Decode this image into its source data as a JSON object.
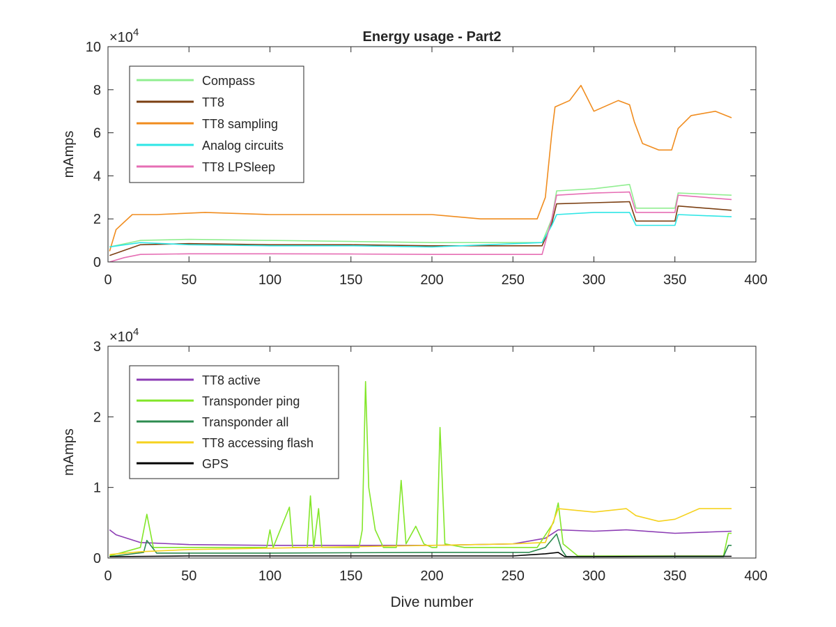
{
  "chart_data": [
    {
      "type": "line",
      "title": "Energy usage - Part2",
      "xlabel": "",
      "ylabel": "mAmps",
      "exponent_label": "×10",
      "exponent_power": "4",
      "xlim": [
        0,
        400
      ],
      "ylim": [
        0,
        100000
      ],
      "xticks": [
        0,
        50,
        100,
        150,
        200,
        250,
        300,
        350,
        400
      ],
      "yticks": [
        0,
        20000,
        40000,
        60000,
        80000,
        100000
      ],
      "ytick_labels": [
        "0",
        "2",
        "4",
        "6",
        "8",
        "10"
      ],
      "grid": false,
      "legend_position": "top-left",
      "series": [
        {
          "name": "Compass",
          "color": "#90ee90",
          "x": [
            1,
            20,
            50,
            100,
            150,
            200,
            268,
            274,
            277,
            300,
            322,
            326,
            350,
            352,
            385
          ],
          "y": [
            7000,
            10000,
            10500,
            10000,
            9500,
            9000,
            9000,
            20000,
            33000,
            34000,
            36000,
            25000,
            25000,
            32000,
            31000
          ]
        },
        {
          "name": "TT8",
          "color": "#7b3f12",
          "x": [
            1,
            20,
            50,
            100,
            150,
            200,
            268,
            274,
            277,
            300,
            322,
            326,
            350,
            352,
            385
          ],
          "y": [
            3000,
            8000,
            8500,
            8000,
            8000,
            7500,
            7500,
            18000,
            27000,
            27500,
            28000,
            19000,
            19000,
            26000,
            24000
          ]
        },
        {
          "name": "TT8 sampling",
          "color": "#f08c1e",
          "x": [
            1,
            5,
            15,
            30,
            60,
            100,
            130,
            160,
            200,
            230,
            265,
            270,
            274,
            276,
            285,
            292,
            300,
            315,
            322,
            325,
            330,
            340,
            348,
            352,
            360,
            375,
            385
          ],
          "y": [
            5000,
            15000,
            22000,
            22000,
            23000,
            22000,
            22000,
            22000,
            22000,
            20000,
            20000,
            30000,
            60000,
            72000,
            75000,
            82000,
            70000,
            75000,
            73000,
            65000,
            55000,
            52000,
            52000,
            62000,
            68000,
            70000,
            67000
          ]
        },
        {
          "name": "Analog circuits",
          "color": "#2ee6e6",
          "x": [
            1,
            20,
            50,
            100,
            150,
            200,
            268,
            274,
            277,
            300,
            322,
            326,
            350,
            352,
            385
          ],
          "y": [
            7000,
            9000,
            8000,
            7500,
            7500,
            7000,
            9000,
            17000,
            22000,
            23000,
            23000,
            17000,
            17000,
            22000,
            21000
          ]
        },
        {
          "name": "TT8 LPSleep",
          "color": "#e66eb4",
          "x": [
            1,
            10,
            20,
            50,
            100,
            150,
            200,
            268,
            274,
            277,
            300,
            322,
            326,
            350,
            352,
            385
          ],
          "y": [
            0,
            2000,
            3500,
            3800,
            3800,
            3700,
            3500,
            3500,
            20000,
            31000,
            32000,
            32500,
            23000,
            23000,
            31000,
            29000
          ]
        }
      ]
    },
    {
      "type": "line",
      "title": "",
      "xlabel": "Dive number",
      "ylabel": "mAmps",
      "exponent_label": "×10",
      "exponent_power": "4",
      "xlim": [
        0,
        400
      ],
      "ylim": [
        0,
        30000
      ],
      "xticks": [
        0,
        50,
        100,
        150,
        200,
        250,
        300,
        350,
        400
      ],
      "yticks": [
        0,
        10000,
        20000,
        30000
      ],
      "ytick_labels": [
        "0",
        "1",
        "2",
        "3"
      ],
      "grid": false,
      "legend_position": "top-left",
      "series": [
        {
          "name": "TT8 active",
          "color": "#8c3cb4",
          "x": [
            1,
            5,
            20,
            50,
            100,
            150,
            200,
            250,
            270,
            278,
            300,
            320,
            350,
            385
          ],
          "y": [
            4000,
            3300,
            2200,
            1900,
            1800,
            1800,
            1800,
            2000,
            2800,
            4000,
            3800,
            4000,
            3500,
            3800
          ]
        },
        {
          "name": "Transponder ping",
          "color": "#82e628",
          "x": [
            1,
            20,
            24,
            28,
            50,
            98,
            100,
            102,
            112,
            114,
            116,
            123,
            125,
            127,
            130,
            132,
            135,
            145,
            150,
            155,
            157,
            159,
            161,
            165,
            170,
            178,
            181,
            184,
            190,
            195,
            200,
            203,
            205,
            208,
            220,
            265,
            275,
            278,
            281,
            290,
            380,
            383,
            385
          ],
          "y": [
            300,
            1500,
            6200,
            1500,
            1500,
            1500,
            4000,
            1500,
            7200,
            1500,
            1500,
            1500,
            8800,
            1500,
            7000,
            1500,
            1500,
            1500,
            1500,
            1500,
            4000,
            25000,
            10000,
            4000,
            1500,
            1500,
            11000,
            2000,
            4500,
            2000,
            1500,
            1500,
            18500,
            2000,
            1500,
            1500,
            5000,
            7800,
            2000,
            300,
            300,
            3500,
            3500
          ]
        },
        {
          "name": "Transponder all",
          "color": "#2d8c50",
          "x": [
            1,
            22,
            24,
            30,
            100,
            200,
            260,
            270,
            277,
            280,
            283,
            300,
            380,
            383,
            385
          ],
          "y": [
            200,
            800,
            2500,
            700,
            700,
            800,
            800,
            1500,
            3400,
            1200,
            200,
            200,
            200,
            1800,
            1800
          ]
        },
        {
          "name": "TT8 accessing flash",
          "color": "#f5d21e",
          "x": [
            1,
            20,
            50,
            100,
            150,
            200,
            250,
            270,
            278,
            300,
            320,
            326,
            340,
            350,
            365,
            385
          ],
          "y": [
            500,
            900,
            1200,
            1400,
            1600,
            1800,
            2000,
            2200,
            7000,
            6500,
            7000,
            6000,
            5200,
            5500,
            7000,
            7000
          ]
        },
        {
          "name": "GPS",
          "color": "#000000",
          "x": [
            1,
            50,
            100,
            150,
            200,
            250,
            270,
            278,
            282,
            300,
            350,
            385
          ],
          "y": [
            200,
            300,
            300,
            300,
            300,
            300,
            600,
            800,
            200,
            200,
            250,
            250
          ]
        }
      ]
    }
  ]
}
